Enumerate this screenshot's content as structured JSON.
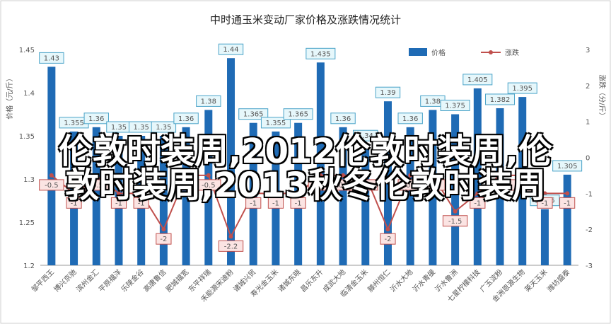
{
  "chart_data": {
    "type": "bar",
    "title": "中时通玉米变动厂家价格及涨跌情况统计",
    "ylabel": "价格（元/斤）",
    "y2label": "涨跌（分/斤）",
    "ylim": [
      1.2,
      1.45
    ],
    "yticks": [
      "1.2",
      "1.25",
      "1.3",
      "1.35",
      "1.4",
      "1.45"
    ],
    "y2lim": [
      -3,
      3
    ],
    "y2ticks": [
      "-3",
      "-2",
      "-1",
      "0",
      "1",
      "2",
      "3"
    ],
    "legend_position": "top-right",
    "categories": [
      "邹平西王",
      "博兴京驰",
      "滨州金汇",
      "平原福洋",
      "乐陵金谷",
      "高唐鲁信",
      "肥城福宽",
      "东平祥瑞",
      "禾能源宋迪粉",
      "诸城兴贸",
      "寿光金玉米",
      "诸城东晓",
      "昌乐东升",
      "成武大地",
      "临清金玉米",
      "滕州恒仁",
      "沂水大地",
      "沂水青援",
      "沂水鲁洲",
      "七星柠檬科技",
      "广玉淀粉",
      "金洲恩源生物",
      "莱天玉米",
      "潍坊盛泰"
    ],
    "series": [
      {
        "name": "价格",
        "type": "bar",
        "color": "#1f6bb5",
        "values": [
          1.43,
          1.355,
          1.36,
          1.35,
          1.35,
          1.35,
          1.36,
          1.38,
          1.44,
          1.365,
          1.355,
          1.365,
          1.435,
          1.36,
          1.34,
          1.39,
          1.36,
          1.38,
          1.375,
          1.405,
          1.382,
          1.395,
          1.265,
          1.305
        ],
        "labels": [
          "1.43",
          "1.355",
          "1.36",
          "1.35",
          "1.35",
          "1.35",
          "1.36",
          "1.38",
          "1.44",
          "1.365",
          "1.355",
          "1.365",
          "1.435",
          "1.36",
          "1.34",
          "1.39",
          "1.36",
          "1.38",
          "1.375",
          "1.405",
          "1.382",
          "1.395",
          "1.265",
          "1.305"
        ]
      },
      {
        "name": "涨跌",
        "type": "line",
        "axis": "right",
        "color": "#c0504d",
        "values": [
          -0.5,
          -1,
          -0.5,
          -1,
          -1,
          -2,
          -0.5,
          -0.5,
          -2.2,
          -1,
          -1,
          -1,
          -0.5,
          -0.5,
          -0.5,
          -2,
          -0.5,
          -0.5,
          -1.5,
          -1,
          -0.5,
          -0.5,
          -1,
          -1
        ],
        "labels": [
          "-0.5",
          "-1",
          "-0.5",
          "-1",
          "-1",
          "-2",
          "-0.5",
          "-0.5",
          "-2.2",
          "-1",
          "-1",
          "-1",
          "-0.5",
          "-0.5",
          "-0.5",
          "-2",
          "-0.5",
          "-0.5",
          "-1.5",
          "-1",
          "-0.5",
          "-0.5",
          "-1",
          "-1"
        ]
      }
    ]
  },
  "overlay": {
    "line1": "伦敦时装周,2012伦敦时装周,伦",
    "line2": "敦时装周,2013秋冬伦敦时装周",
    "color": "#ffffff"
  }
}
